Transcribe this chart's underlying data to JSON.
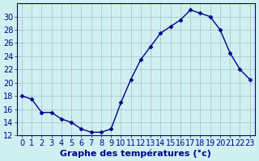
{
  "x": [
    0,
    1,
    2,
    3,
    4,
    5,
    6,
    7,
    8,
    9,
    10,
    11,
    12,
    13,
    14,
    15,
    16,
    17,
    18,
    19,
    20,
    21,
    22,
    23
  ],
  "y": [
    18,
    17.5,
    15.5,
    15.5,
    14.5,
    14,
    13,
    12.5,
    12.5,
    13,
    17,
    20.5,
    23.5,
    25.5,
    27.5,
    28.5,
    29.5,
    31,
    30.5,
    30,
    28,
    24.5,
    22,
    20.5
  ],
  "xlabel": "Graphe des températures (°c)",
  "ylim": [
    12,
    32
  ],
  "xlim_min": -0.5,
  "xlim_max": 23.5,
  "yticks": [
    12,
    14,
    16,
    18,
    20,
    22,
    24,
    26,
    28,
    30
  ],
  "xticks": [
    0,
    1,
    2,
    3,
    4,
    5,
    6,
    7,
    8,
    9,
    10,
    11,
    12,
    13,
    14,
    15,
    16,
    17,
    18,
    19,
    20,
    21,
    22,
    23
  ],
  "line_color": "#00008b",
  "marker_color": "#00008b",
  "bg_color": "#cff0f0",
  "grid_color": "#b0b8c8",
  "axis_color": "#00008b",
  "tick_label_color": "#00008b",
  "xlabel_color": "#00008b",
  "xlabel_fontsize": 8,
  "tick_fontsize": 7,
  "marker": "D",
  "marker_size": 2.5,
  "line_width": 1.0
}
